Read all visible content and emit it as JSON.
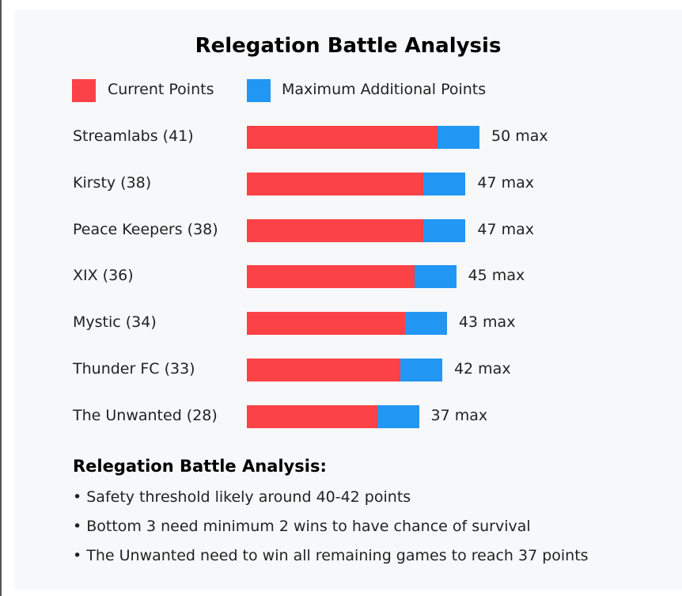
{
  "chart_data": {
    "type": "bar",
    "orientation": "horizontal",
    "stacked": true,
    "title": "Relegation Battle Analysis",
    "legend": [
      {
        "label": "Current Points",
        "color": "#fb4246"
      },
      {
        "label": "Maximum Additional Points",
        "color": "#2196f3"
      }
    ],
    "categories": [
      "Streamlabs (41)",
      "Kirsty (38)",
      "Peace Keepers (38)",
      "XIX (36)",
      "Mystic (34)",
      "Thunder FC (33)",
      "The Unwanted (28)"
    ],
    "series": [
      {
        "name": "Current Points",
        "values": [
          41,
          38,
          38,
          36,
          34,
          33,
          28
        ]
      },
      {
        "name": "Maximum Additional Points",
        "values": [
          9,
          9,
          9,
          9,
          9,
          9,
          9
        ]
      }
    ],
    "max_labels": [
      "50 max",
      "47 max",
      "47 max",
      "45 max",
      "43 max",
      "42 max",
      "37 max"
    ],
    "grid": false,
    "legend_position": "top-left"
  },
  "notes": {
    "title": "Relegation Battle Analysis:",
    "items": [
      "• Safety threshold likely around 40-42 points",
      "• Bottom 3 need minimum 2 wins to have chance of survival",
      "• The Unwanted need to win all remaining games to reach 37 points"
    ]
  }
}
